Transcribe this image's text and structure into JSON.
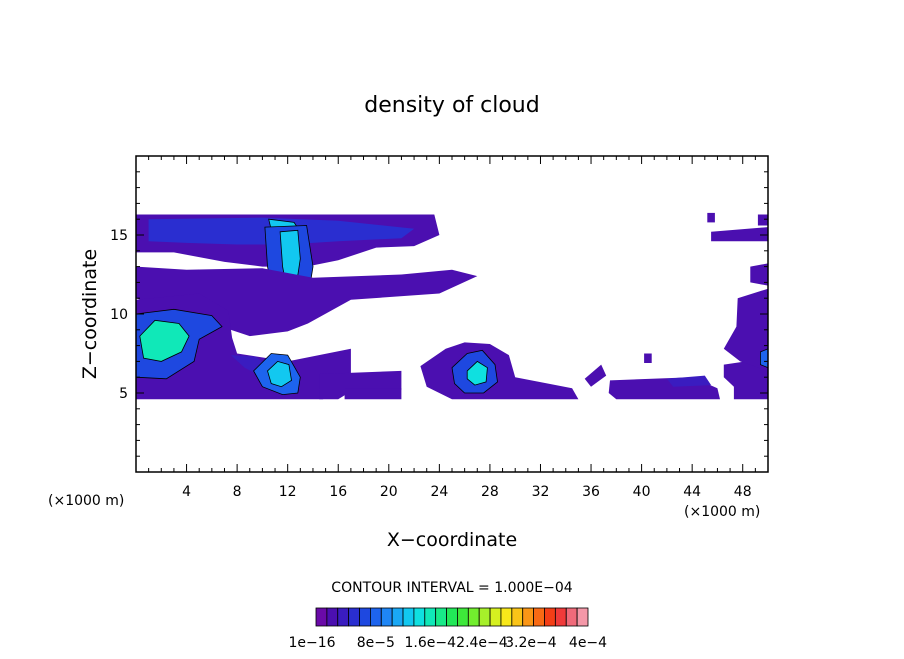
{
  "chart_data": {
    "type": "heatmap",
    "title": "density of cloud",
    "xlabel": "X−coordinate",
    "ylabel": "Z−coordinate",
    "x_unit_left": "(×1000 m)",
    "x_unit_right": "(×1000 m)",
    "xlim": [
      0,
      50
    ],
    "ylim": [
      0,
      20
    ],
    "x_ticks": [
      4,
      8,
      12,
      16,
      20,
      24,
      28,
      32,
      36,
      40,
      44,
      48
    ],
    "x_tick_labels": [
      "4",
      "8",
      "12",
      "16",
      "20",
      "24",
      "28",
      "32",
      "36",
      "40",
      "44",
      "48"
    ],
    "y_ticks": [
      5,
      10,
      15
    ],
    "y_tick_labels": [
      "5",
      "10",
      "15"
    ],
    "contour_interval_text": "CONTOUR INTERVAL = 1.000E−04",
    "colorbar_labels": [
      "1e−16",
      "8e−5",
      "1.6e−4",
      "2.4e−4",
      "3.2e−4",
      "4e−4"
    ],
    "colorbar_colors": [
      "#6a0aa8",
      "#4b0fb0",
      "#3a1cc0",
      "#2a2ed0",
      "#1e48e0",
      "#1d64ee",
      "#1f86f5",
      "#1aa8f5",
      "#12c8f0",
      "#0fe0e0",
      "#10e8b8",
      "#18ea88",
      "#22e858",
      "#3ee83a",
      "#72ee2e",
      "#a6f02a",
      "#d6f020",
      "#f8e81a",
      "#fac418",
      "#fa9616",
      "#f86a14",
      "#f43e16",
      "#f03a3a",
      "#f06a7a",
      "#f498a8"
    ],
    "regions": [
      {
        "name": "upper-anvil",
        "level": 1,
        "points": [
          [
            0,
            16.3
          ],
          [
            23.6,
            16.3
          ],
          [
            24,
            15
          ],
          [
            22,
            14.3
          ],
          [
            19,
            14.2
          ],
          [
            16,
            13.4
          ],
          [
            13.5,
            13
          ],
          [
            10,
            13
          ],
          [
            7,
            13.3
          ],
          [
            3,
            13.9
          ],
          [
            0,
            13.9
          ]
        ]
      },
      {
        "name": "upper-anvil-core",
        "level": 3,
        "points": [
          [
            1,
            16
          ],
          [
            10,
            16.1
          ],
          [
            16,
            15.9
          ],
          [
            22,
            15.4
          ],
          [
            21,
            14.8
          ],
          [
            16,
            14.6
          ],
          [
            12,
            14.4
          ],
          [
            8,
            14.4
          ],
          [
            4,
            14.5
          ],
          [
            1,
            14.6
          ]
        ]
      },
      {
        "name": "upper-anvil-peak",
        "level": 8,
        "points": [
          [
            10.5,
            16
          ],
          [
            12.5,
            15.8
          ],
          [
            13.2,
            15
          ],
          [
            12,
            14.6
          ],
          [
            10.8,
            15
          ]
        ]
      },
      {
        "name": "central-column",
        "level": 4,
        "points": [
          [
            10.2,
            15.5
          ],
          [
            13.5,
            15.6
          ],
          [
            14,
            13
          ],
          [
            13.6,
            11
          ],
          [
            12.4,
            10.2
          ],
          [
            11,
            10.6
          ],
          [
            10.4,
            13
          ]
        ]
      },
      {
        "name": "central-column-peak",
        "level": 8,
        "points": [
          [
            11.4,
            15.2
          ],
          [
            12.8,
            15.3
          ],
          [
            13,
            13.5
          ],
          [
            12.6,
            11.4
          ],
          [
            12,
            11.3
          ],
          [
            11.6,
            13
          ]
        ]
      },
      {
        "name": "mid-layer",
        "level": 1,
        "points": [
          [
            0,
            13
          ],
          [
            4,
            12.8
          ],
          [
            10,
            12.9
          ],
          [
            14,
            12.3
          ],
          [
            21,
            12.5
          ],
          [
            25,
            12.8
          ],
          [
            27,
            12.4
          ],
          [
            24,
            11.3
          ],
          [
            17,
            10.9
          ],
          [
            13.6,
            9.4
          ],
          [
            12,
            8.9
          ],
          [
            9,
            8.6
          ],
          [
            6,
            9.4
          ],
          [
            0,
            11
          ]
        ]
      },
      {
        "name": "left-cell",
        "level": 1,
        "points": [
          [
            0,
            10.9
          ],
          [
            5,
            11.3
          ],
          [
            7.3,
            10.2
          ],
          [
            7.6,
            8.5
          ],
          [
            8,
            7.5
          ],
          [
            12,
            7
          ],
          [
            17,
            7.8
          ],
          [
            17,
            6.2
          ],
          [
            15,
            5.4
          ],
          [
            14.8,
            4.6
          ],
          [
            0,
            4.6
          ]
        ]
      },
      {
        "name": "left-cell-core",
        "level": 4,
        "points": [
          [
            0,
            10
          ],
          [
            3,
            10.3
          ],
          [
            6,
            9.9
          ],
          [
            6.8,
            9.2
          ],
          [
            5,
            8.4
          ],
          [
            4.6,
            7
          ],
          [
            2.4,
            5.9
          ],
          [
            0,
            6
          ]
        ]
      },
      {
        "name": "left-cell-peak",
        "level": 10,
        "points": [
          [
            0.3,
            8.6
          ],
          [
            1.5,
            9.6
          ],
          [
            3.4,
            9.4
          ],
          [
            4.2,
            8.6
          ],
          [
            3.6,
            7.6
          ],
          [
            2,
            7
          ],
          [
            0.6,
            7.2
          ]
        ]
      },
      {
        "name": "right-of-left-cell",
        "level": 2,
        "points": [
          [
            7.5,
            7.4
          ],
          [
            8.6,
            6.6
          ],
          [
            10,
            6
          ],
          [
            12.5,
            5.3
          ],
          [
            11,
            6.3
          ],
          [
            9.5,
            7.3
          ]
        ]
      },
      {
        "name": "small-cell-11",
        "level": 5,
        "points": [
          [
            9.3,
            6.4
          ],
          [
            10.7,
            7.5
          ],
          [
            12,
            7.4
          ],
          [
            13,
            6
          ],
          [
            12.8,
            5
          ],
          [
            11.6,
            4.9
          ],
          [
            10,
            5.4
          ]
        ]
      },
      {
        "name": "small-cell-11-peak",
        "level": 8,
        "points": [
          [
            10.4,
            6.4
          ],
          [
            11.2,
            7
          ],
          [
            12.1,
            6.8
          ],
          [
            12.3,
            5.8
          ],
          [
            11.5,
            5.4
          ],
          [
            10.7,
            5.6
          ]
        ]
      },
      {
        "name": "low-band-left",
        "level": 1,
        "points": [
          [
            14.5,
            6.2
          ],
          [
            21,
            6.4
          ],
          [
            21,
            5.2
          ],
          [
            17,
            5.1
          ],
          [
            16,
            4.6
          ],
          [
            14.5,
            4.6
          ]
        ]
      },
      {
        "name": "low-band-mid",
        "level": 1,
        "points": [
          [
            16.5,
            5.3
          ],
          [
            21,
            5.3
          ],
          [
            21,
            4.6
          ],
          [
            16.5,
            4.6
          ]
        ]
      },
      {
        "name": "cell-27",
        "level": 1,
        "points": [
          [
            22.5,
            6.7
          ],
          [
            24.5,
            7.8
          ],
          [
            26,
            8.2
          ],
          [
            28,
            8.1
          ],
          [
            29.5,
            7.4
          ],
          [
            30,
            6
          ],
          [
            34.5,
            5.3
          ],
          [
            35,
            4.6
          ],
          [
            25,
            4.6
          ],
          [
            23,
            5.4
          ]
        ]
      },
      {
        "name": "cell-27-core",
        "level": 4,
        "points": [
          [
            25,
            6.6
          ],
          [
            26.2,
            7.5
          ],
          [
            27.4,
            7.7
          ],
          [
            28.4,
            6.8
          ],
          [
            28.6,
            5.7
          ],
          [
            27.5,
            5
          ],
          [
            26,
            5
          ],
          [
            25.2,
            5.6
          ]
        ]
      },
      {
        "name": "cell-27-peak",
        "level": 9,
        "points": [
          [
            26.2,
            6.4
          ],
          [
            27,
            7
          ],
          [
            27.8,
            6.6
          ],
          [
            27.7,
            5.7
          ],
          [
            26.8,
            5.5
          ],
          [
            26.2,
            5.9
          ]
        ]
      },
      {
        "name": "right-band",
        "level": 1,
        "points": [
          [
            37.5,
            5.8
          ],
          [
            44,
            6
          ],
          [
            46,
            5.3
          ],
          [
            46.2,
            4.6
          ],
          [
            38,
            4.6
          ],
          [
            37.4,
            5
          ]
        ]
      },
      {
        "name": "right-band-small",
        "level": 2,
        "points": [
          [
            42,
            5.9
          ],
          [
            45,
            6.1
          ],
          [
            45.5,
            5.5
          ],
          [
            42.5,
            5.4
          ]
        ]
      },
      {
        "name": "right-scatter",
        "level": 1,
        "points": [
          [
            35.5,
            5.9
          ],
          [
            36.8,
            6.8
          ],
          [
            37.2,
            6.1
          ],
          [
            36,
            5.4
          ]
        ]
      },
      {
        "name": "right-edge-low",
        "level": 1,
        "points": [
          [
            46.5,
            6.8
          ],
          [
            50,
            7.2
          ],
          [
            50,
            4.6
          ],
          [
            47.3,
            4.6
          ],
          [
            47.3,
            5.4
          ],
          [
            46.5,
            6
          ]
        ]
      },
      {
        "name": "right-edge-mid",
        "level": 1,
        "points": [
          [
            47.6,
            11
          ],
          [
            50,
            11.6
          ],
          [
            50,
            6.4
          ],
          [
            47.8,
            7
          ],
          [
            46.5,
            7.8
          ],
          [
            47.5,
            9.2
          ]
        ]
      },
      {
        "name": "right-edge-core",
        "level": 5,
        "points": [
          [
            49.4,
            7.6
          ],
          [
            50,
            7.8
          ],
          [
            50,
            6.6
          ],
          [
            49.4,
            6.8
          ]
        ]
      },
      {
        "name": "right-edge-upper",
        "level": 1,
        "points": [
          [
            45.5,
            15.2
          ],
          [
            50,
            15.5
          ],
          [
            50,
            14.6
          ],
          [
            45.5,
            14.6
          ]
        ]
      },
      {
        "name": "right-edge-top",
        "level": 1,
        "points": [
          [
            49.2,
            16.3
          ],
          [
            50,
            16.3
          ],
          [
            50,
            15.6
          ],
          [
            49.2,
            15.6
          ]
        ]
      },
      {
        "name": "right-edge-sliver",
        "level": 1,
        "points": [
          [
            48.6,
            13
          ],
          [
            50,
            13.2
          ],
          [
            50,
            11.8
          ],
          [
            48.6,
            12
          ]
        ]
      },
      {
        "name": "top-right-dot",
        "level": 1,
        "points": [
          [
            45.2,
            16.4
          ],
          [
            45.8,
            16.4
          ],
          [
            45.8,
            15.8
          ],
          [
            45.2,
            15.8
          ]
        ]
      },
      {
        "name": "dot-40",
        "level": 1,
        "points": [
          [
            40.2,
            7.5
          ],
          [
            40.8,
            7.5
          ],
          [
            40.8,
            6.9
          ],
          [
            40.2,
            6.9
          ]
        ]
      }
    ]
  }
}
